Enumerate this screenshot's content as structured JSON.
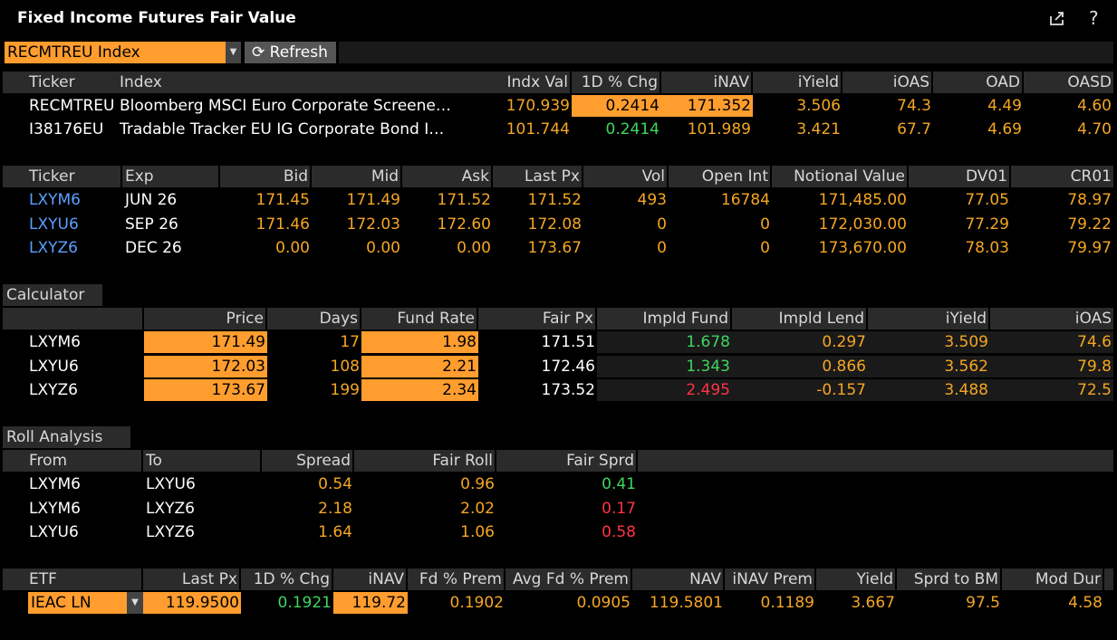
{
  "app": {
    "title": "Fixed Income Futures Fair Value",
    "share_icon": "share-icon",
    "help_icon": "help-icon",
    "help_glyph": "?"
  },
  "toolbar": {
    "security": "RECMTREU Index",
    "refresh_label": "Refresh",
    "refresh_icon": "refresh-icon"
  },
  "index_table": {
    "headers": [
      "Ticker",
      "Index",
      "Indx Val",
      "1D % Chg",
      "iNAV",
      "iYield",
      "iOAS",
      "OAD",
      "OASD"
    ],
    "rows": [
      [
        "RECMTREU",
        "Bloomberg MSCI Euro Corporate Screene…",
        "170.939",
        "0.2414",
        "171.352",
        "3.506",
        "74.3",
        "4.49",
        "4.60"
      ],
      [
        "I38176EU",
        "Tradable Tracker EU IG Corporate Bond I…",
        "101.744",
        "0.2414",
        "101.989",
        "3.421",
        "67.7",
        "4.69",
        "4.70"
      ]
    ]
  },
  "futures_table": {
    "headers": [
      "Ticker",
      "Exp",
      "Bid",
      "Mid",
      "Ask",
      "Last Px",
      "Vol",
      "Open Int",
      "Notional Value",
      "DV01",
      "CR01"
    ],
    "rows": [
      [
        "LXYM6",
        "JUN 26",
        "171.45",
        "171.49",
        "171.52",
        "171.52",
        "493",
        "16784",
        "171,485.00",
        "77.05",
        "78.97"
      ],
      [
        "LXYU6",
        "SEP 26",
        "171.46",
        "172.03",
        "172.60",
        "172.08",
        "0",
        "0",
        "172,030.00",
        "77.29",
        "79.22"
      ],
      [
        "LXYZ6",
        "DEC 26",
        "0.00",
        "0.00",
        "0.00",
        "173.67",
        "0",
        "0",
        "173,670.00",
        "78.03",
        "79.97"
      ]
    ]
  },
  "calculator": {
    "section_label": "Calculator",
    "headers": [
      "",
      "Price",
      "Days",
      "Fund Rate",
      "Fair Px",
      "Impld Fund",
      "Impld Lend",
      "iYield",
      "iOAS"
    ],
    "rows": [
      [
        "LXYM6",
        "171.49",
        "17",
        "1.98",
        "171.51",
        "1.678",
        "0.297",
        "3.509",
        "74.6"
      ],
      [
        "LXYU6",
        "172.03",
        "108",
        "2.21",
        "172.46",
        "1.343",
        "0.866",
        "3.562",
        "79.8"
      ],
      [
        "LXYZ6",
        "173.67",
        "199",
        "2.34",
        "173.52",
        "2.495",
        "-0.157",
        "3.488",
        "72.5"
      ]
    ]
  },
  "roll": {
    "section_label": "Roll Analysis",
    "headers": [
      "From",
      "To",
      "Spread",
      "Fair Roll",
      "Fair Sprd"
    ],
    "rows": [
      [
        "LXYM6",
        "LXYU6",
        "0.54",
        "0.96",
        "0.41"
      ],
      [
        "LXYM6",
        "LXYZ6",
        "2.18",
        "2.02",
        "0.17"
      ],
      [
        "LXYU6",
        "LXYZ6",
        "1.64",
        "1.06",
        "0.58"
      ]
    ]
  },
  "etf": {
    "headers": [
      "ETF",
      "Last Px",
      "1D % Chg",
      "iNAV",
      "Fd % Prem",
      "Avg Fd % Prem",
      "NAV",
      "iNAV Prem",
      "Yield",
      "Sprd to BM",
      "Mod Dur"
    ],
    "row": [
      "IEAC LN",
      "119.9500",
      "0.1921",
      "119.72",
      "0.1902",
      "0.0905",
      "119.5801",
      "0.1189",
      "3.667",
      "97.5",
      "4.58"
    ]
  },
  "colors": {
    "accent_orange": "#ff9d2e",
    "value_orange": "#f5a623",
    "positive_green": "#3fd65f",
    "negative_red": "#ff3344",
    "link_blue": "#5aa0ff",
    "header_gray": "#2b2b2b"
  }
}
